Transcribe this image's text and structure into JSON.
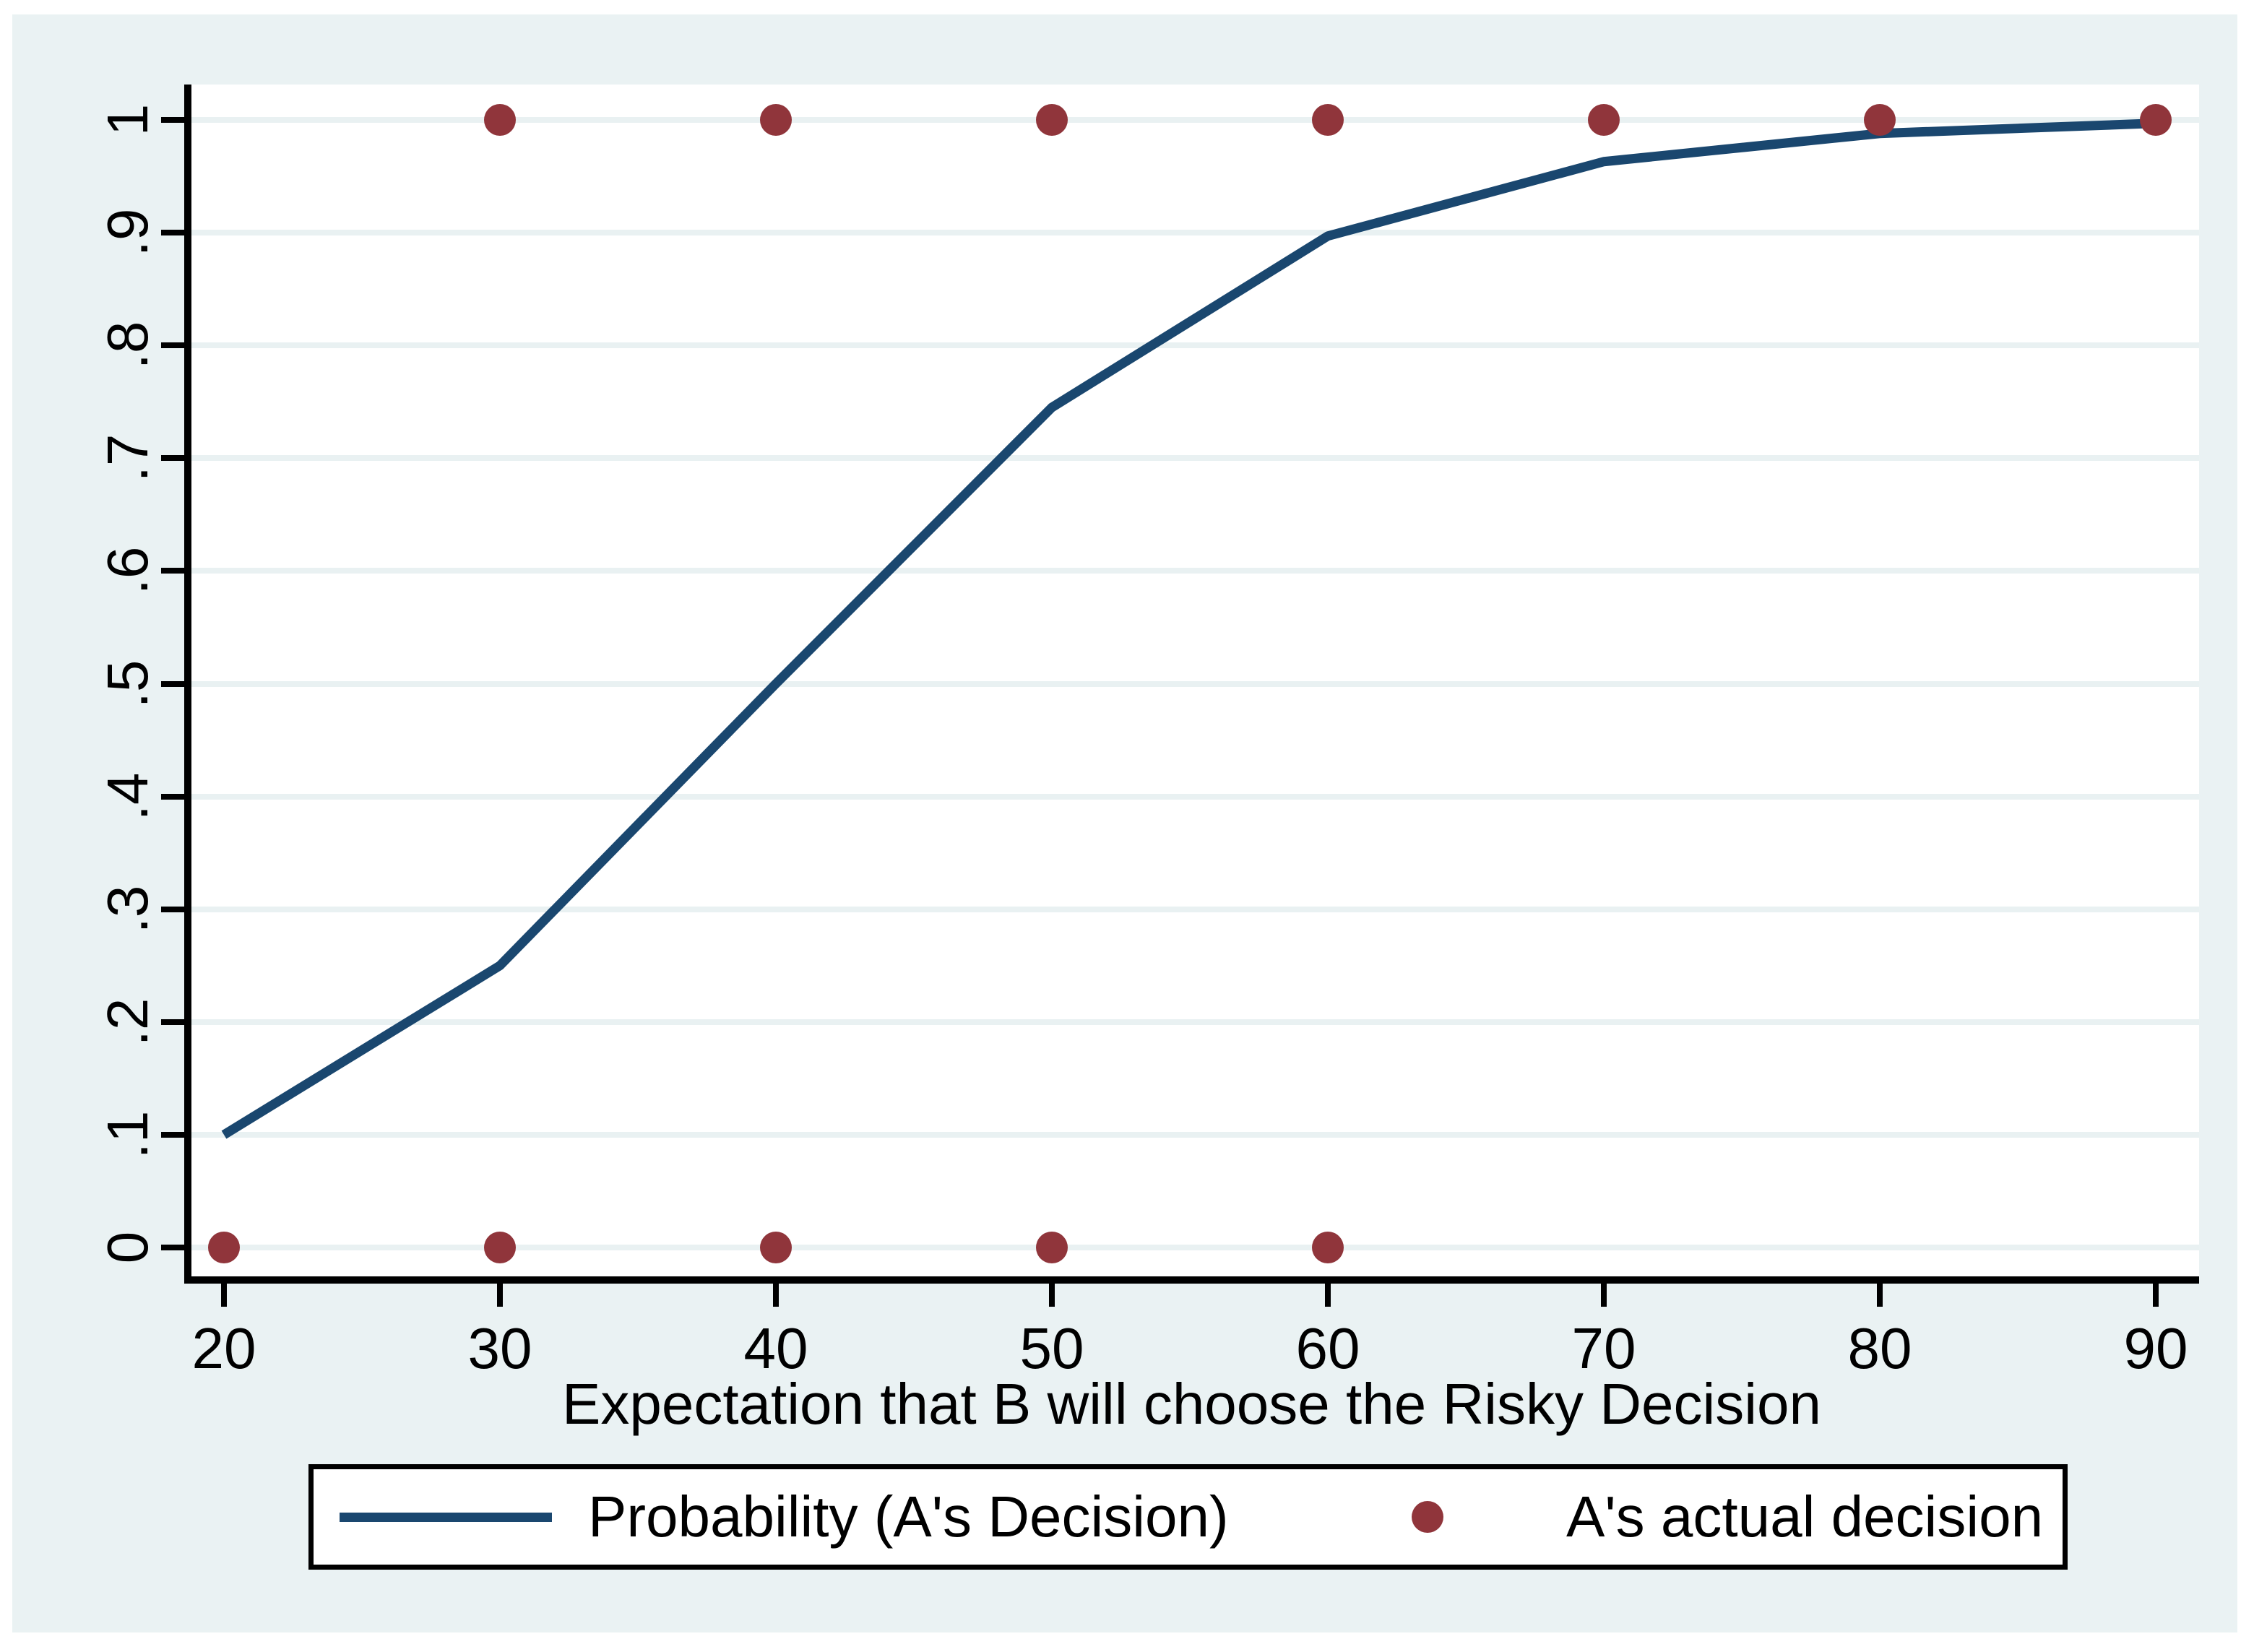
{
  "chart_data": {
    "type": "line",
    "title": "",
    "xlabel": "Expectation that B will choose the Risky Decision",
    "ylabel": "",
    "xlim": [
      20,
      90
    ],
    "ylim": [
      0,
      1
    ],
    "grid": "horizontal",
    "x_ticks": {
      "values": [
        20,
        30,
        40,
        50,
        60,
        70,
        80,
        90
      ],
      "labels": [
        "20",
        "30",
        "40",
        "50",
        "60",
        "70",
        "80",
        "90"
      ]
    },
    "y_ticks": {
      "values": [
        0,
        0.1,
        0.2,
        0.3,
        0.4,
        0.5,
        0.6,
        0.7,
        0.8,
        0.9,
        1
      ],
      "labels": [
        "0",
        ".1",
        ".2",
        ".3",
        ".4",
        ".5",
        ".6",
        ".7",
        ".8",
        ".9",
        "1"
      ]
    },
    "series": [
      {
        "name": "Probability (A's Decision)",
        "type": "line",
        "color": "#1A476F",
        "points": [
          [
            20,
            0.1
          ],
          [
            30,
            0.25
          ],
          [
            40,
            0.5
          ],
          [
            50,
            0.745
          ],
          [
            60,
            0.897
          ],
          [
            70,
            0.963
          ],
          [
            80,
            0.988
          ],
          [
            90,
            0.997
          ]
        ]
      },
      {
        "name": "A's actual decision",
        "type": "scatter",
        "color": "#90353B",
        "points": [
          [
            20,
            0
          ],
          [
            30,
            0
          ],
          [
            40,
            0
          ],
          [
            50,
            0
          ],
          [
            60,
            0
          ],
          [
            30,
            1
          ],
          [
            40,
            1
          ],
          [
            50,
            1
          ],
          [
            60,
            1
          ],
          [
            70,
            1
          ],
          [
            80,
            1
          ],
          [
            90,
            1
          ]
        ]
      }
    ],
    "legend": {
      "position": "bottom",
      "entries": [
        "Probability (A's Decision)",
        "A's actual decision"
      ]
    }
  },
  "colors": {
    "background": "#EAF2F3",
    "plot_background": "#FFFFFF",
    "gridline": "#E9F1F2",
    "axis": "#000000",
    "line": "#1A476F",
    "marker": "#90353B"
  }
}
